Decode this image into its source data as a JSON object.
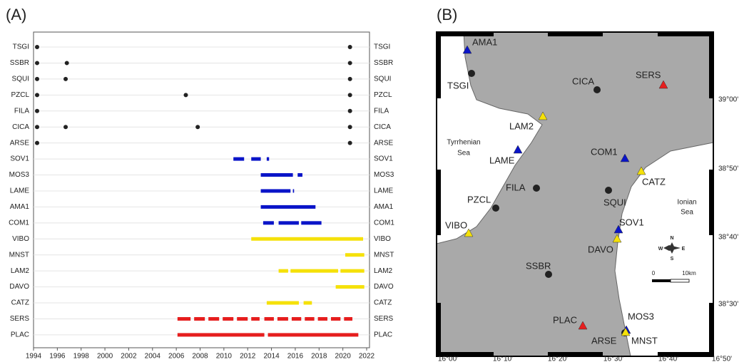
{
  "chart_data": {
    "type": "timeline",
    "label": "(A)",
    "xlim": [
      1994,
      2022
    ],
    "xticks": [
      1994,
      1996,
      1998,
      2000,
      2002,
      2004,
      2006,
      2008,
      2010,
      2012,
      2014,
      2016,
      2018,
      2020,
      2022
    ],
    "rows": [
      {
        "name": "TSGI",
        "color": "#222222",
        "points": [
          1994.3,
          2020.6
        ],
        "segments": []
      },
      {
        "name": "SSBR",
        "color": "#222222",
        "points": [
          1994.3,
          1996.8,
          2020.6
        ],
        "segments": []
      },
      {
        "name": "SQUI",
        "color": "#222222",
        "points": [
          1994.3,
          1996.7,
          2020.6
        ],
        "segments": []
      },
      {
        "name": "PZCL",
        "color": "#222222",
        "points": [
          1994.3,
          2006.8,
          2020.6
        ],
        "segments": []
      },
      {
        "name": "FILA",
        "color": "#222222",
        "points": [
          1994.3,
          2020.6
        ],
        "segments": []
      },
      {
        "name": "CICA",
        "color": "#222222",
        "points": [
          1994.3,
          1996.7,
          2007.8,
          2020.6
        ],
        "segments": []
      },
      {
        "name": "ARSE",
        "color": "#222222",
        "points": [
          1994.3,
          2020.6
        ],
        "segments": []
      },
      {
        "name": "SOV1",
        "color": "#0a14c8",
        "points": [],
        "segments": [
          [
            2010.8,
            2011.7
          ],
          [
            2012.3,
            2013.1
          ],
          [
            2013.6,
            2013.8
          ]
        ]
      },
      {
        "name": "MOS3",
        "color": "#0a14c8",
        "points": [],
        "segments": [
          [
            2013.1,
            2015.8
          ],
          [
            2016.2,
            2016.6
          ]
        ]
      },
      {
        "name": "LAME",
        "color": "#0a14c8",
        "points": [],
        "segments": [
          [
            2013.1,
            2015.6
          ],
          [
            2015.8,
            2015.9
          ]
        ]
      },
      {
        "name": "AMA1",
        "color": "#0a14c8",
        "points": [],
        "segments": [
          [
            2013.1,
            2017.7
          ]
        ]
      },
      {
        "name": "COM1",
        "color": "#0a14c8",
        "points": [],
        "segments": [
          [
            2013.3,
            2014.2
          ],
          [
            2014.6,
            2016.3
          ],
          [
            2016.5,
            2018.2
          ]
        ]
      },
      {
        "name": "VIBO",
        "color": "#f5e10a",
        "points": [],
        "segments": [
          [
            2012.3,
            2021.7
          ]
        ]
      },
      {
        "name": "MNST",
        "color": "#f5e10a",
        "points": [],
        "segments": [
          [
            2020.2,
            2021.8
          ]
        ]
      },
      {
        "name": "LAM2",
        "color": "#f5e10a",
        "points": [],
        "segments": [
          [
            2014.6,
            2015.4
          ],
          [
            2015.6,
            2019.6
          ],
          [
            2019.8,
            2021.8
          ]
        ]
      },
      {
        "name": "DAVO",
        "color": "#f5e10a",
        "points": [],
        "segments": [
          [
            2019.4,
            2021.8
          ]
        ]
      },
      {
        "name": "CATZ",
        "color": "#f5e10a",
        "points": [],
        "segments": [
          [
            2013.6,
            2016.3
          ],
          [
            2016.7,
            2017.4
          ]
        ]
      },
      {
        "name": "SERS",
        "color": "#e61e1e",
        "points": [],
        "segments": [
          [
            2006.1,
            2007.2
          ],
          [
            2007.5,
            2008.4
          ],
          [
            2008.7,
            2009.6
          ],
          [
            2009.9,
            2010.8
          ],
          [
            2011.1,
            2012.0
          ],
          [
            2012.3,
            2013.0
          ],
          [
            2013.4,
            2014.2
          ],
          [
            2014.5,
            2015.4
          ],
          [
            2015.7,
            2016.5
          ],
          [
            2016.8,
            2017.6
          ],
          [
            2017.9,
            2018.7
          ],
          [
            2019.0,
            2019.8
          ],
          [
            2020.1,
            2020.8
          ]
        ]
      },
      {
        "name": "PLAC",
        "color": "#e61e1e",
        "points": [],
        "segments": [
          [
            2006.1,
            2013.4
          ],
          [
            2013.7,
            2021.3
          ]
        ]
      }
    ]
  },
  "map": {
    "label": "(B)",
    "lon_labels": [
      "16°00'",
      "16°10'",
      "16°20'",
      "16°30'",
      "16°40'",
      "16°50'"
    ],
    "lat_labels": [
      "39°00'",
      "38°50'",
      "38°40'",
      "38°30'"
    ],
    "seas": [
      [
        "Tyrrhenian",
        "Sea"
      ],
      [
        "Ionian",
        "Sea"
      ]
    ],
    "scale": [
      "0",
      "10km"
    ],
    "compass": [
      "N",
      "E",
      "S",
      "W"
    ],
    "stations": [
      {
        "name": "AMA1",
        "marker": "triangle",
        "color": "#0a14c8"
      },
      {
        "name": "TSGI",
        "marker": "circle",
        "color": "#222222"
      },
      {
        "name": "CICA",
        "marker": "circle",
        "color": "#222222"
      },
      {
        "name": "SERS",
        "marker": "triangle",
        "color": "#e61e1e"
      },
      {
        "name": "LAM2",
        "marker": "triangle",
        "color": "#f5e10a"
      },
      {
        "name": "LAME",
        "marker": "triangle",
        "color": "#0a14c8"
      },
      {
        "name": "COM1",
        "marker": "triangle",
        "color": "#0a14c8"
      },
      {
        "name": "CATZ",
        "marker": "triangle",
        "color": "#f5e10a"
      },
      {
        "name": "FILA",
        "marker": "circle",
        "color": "#222222"
      },
      {
        "name": "SQUI",
        "marker": "circle",
        "color": "#222222"
      },
      {
        "name": "PZCL",
        "marker": "circle",
        "color": "#222222"
      },
      {
        "name": "SOV1",
        "marker": "triangle",
        "color": "#0a14c8"
      },
      {
        "name": "VIBO",
        "marker": "triangle",
        "color": "#f5e10a"
      },
      {
        "name": "DAVO",
        "marker": "triangle",
        "color": "#f5e10a"
      },
      {
        "name": "SSBR",
        "marker": "circle",
        "color": "#222222"
      },
      {
        "name": "PLAC",
        "marker": "triangle",
        "color": "#e61e1e"
      },
      {
        "name": "MOS3",
        "marker": "triangle",
        "color": "#0a14c8"
      },
      {
        "name": "ARSE",
        "marker": "circle",
        "color": "#222222"
      },
      {
        "name": "MNST",
        "marker": "triangle",
        "color": "#f5e10a"
      }
    ]
  }
}
